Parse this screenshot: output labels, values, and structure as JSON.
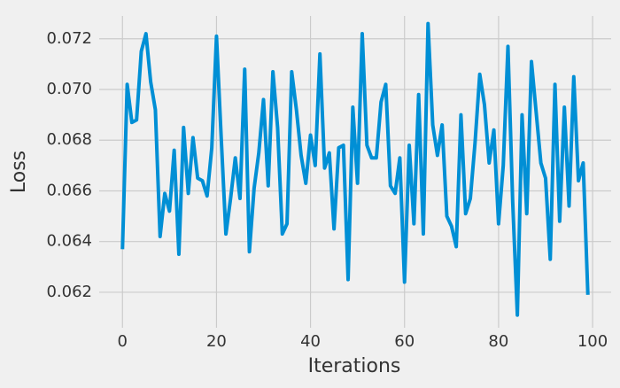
{
  "chart_data": {
    "type": "line",
    "xlabel": "Iterations",
    "ylabel": "Loss",
    "x": [
      0,
      1,
      2,
      3,
      4,
      5,
      6,
      7,
      8,
      9,
      10,
      11,
      12,
      13,
      14,
      15,
      16,
      17,
      18,
      19,
      20,
      21,
      22,
      23,
      24,
      25,
      26,
      27,
      28,
      29,
      30,
      31,
      32,
      33,
      34,
      35,
      36,
      37,
      38,
      39,
      40,
      41,
      42,
      43,
      44,
      45,
      46,
      47,
      48,
      49,
      50,
      51,
      52,
      53,
      54,
      55,
      56,
      57,
      58,
      59,
      60,
      61,
      62,
      63,
      64,
      65,
      66,
      67,
      68,
      69,
      70,
      71,
      72,
      73,
      74,
      75,
      76,
      77,
      78,
      79,
      80,
      81,
      82,
      83,
      84,
      85,
      86,
      87,
      88,
      89,
      90,
      91,
      92,
      93,
      94,
      95,
      96,
      97,
      98,
      99
    ],
    "series": [
      {
        "name": "Loss",
        "color": "#008fd5",
        "values": [
          0.0637,
          0.0702,
          0.0687,
          0.0688,
          0.0715,
          0.0722,
          0.0703,
          0.0692,
          0.0642,
          0.0659,
          0.0652,
          0.0676,
          0.0635,
          0.0685,
          0.0659,
          0.0681,
          0.0665,
          0.0664,
          0.0658,
          0.0677,
          0.0721,
          0.0681,
          0.0643,
          0.0657,
          0.0673,
          0.0657,
          0.0708,
          0.0636,
          0.0661,
          0.0675,
          0.0696,
          0.0662,
          0.0707,
          0.0685,
          0.0643,
          0.0647,
          0.0707,
          0.0692,
          0.0674,
          0.0663,
          0.0682,
          0.067,
          0.0714,
          0.0669,
          0.0675,
          0.0645,
          0.0677,
          0.0678,
          0.0625,
          0.0693,
          0.0663,
          0.0722,
          0.0678,
          0.0673,
          0.0673,
          0.0695,
          0.0702,
          0.0662,
          0.0659,
          0.0673,
          0.0624,
          0.0678,
          0.0647,
          0.0698,
          0.0643,
          0.0726,
          0.0686,
          0.0674,
          0.0686,
          0.065,
          0.0646,
          0.0638,
          0.069,
          0.0651,
          0.0657,
          0.0679,
          0.0706,
          0.0694,
          0.0671,
          0.0684,
          0.0647,
          0.067,
          0.0717,
          0.0656,
          0.0611,
          0.069,
          0.0651,
          0.0711,
          0.0691,
          0.0671,
          0.0665,
          0.0633,
          0.0702,
          0.0648,
          0.0693,
          0.0654,
          0.0705,
          0.0664,
          0.0671,
          0.0619
        ]
      }
    ],
    "xlim": [
      -4.95,
      103.95
    ],
    "ylim": [
      0.0606,
      0.0729
    ],
    "xticks": [
      0,
      20,
      40,
      60,
      80,
      100
    ],
    "yticks": [
      0.062,
      0.064,
      0.066,
      0.068,
      {
        "value": 0.07,
        "label": "0.070"
      },
      0.072
    ],
    "grid": true
  }
}
